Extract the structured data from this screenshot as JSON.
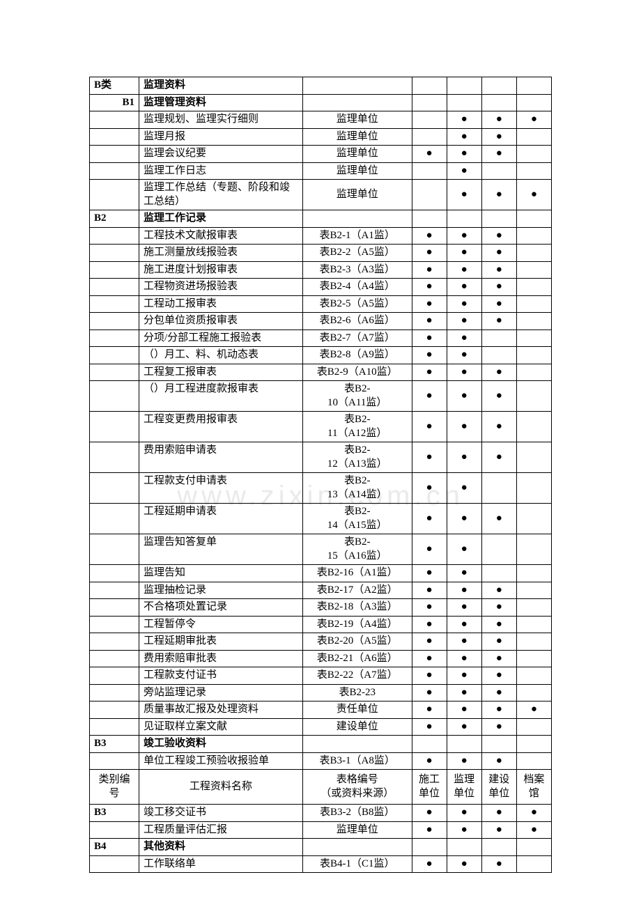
{
  "dot": "●",
  "watermark": "www.zixin.com.cn",
  "header_labels": {
    "code": "类别编号",
    "name": "工程资料名称",
    "form": "表格编号\n（或资料来源）",
    "c1": "施工单位",
    "c2": "监理单位",
    "c3": "建设单位",
    "c4": "档案馆"
  },
  "rows": [
    {
      "code": "B类",
      "name": "监理资料",
      "bold": true
    },
    {
      "code": "B1",
      "name": "监理管理资料",
      "bold": true,
      "codeRight": true
    },
    {
      "code": "",
      "name": "监理规划、监理实行细则",
      "form": "监理单位",
      "d": [
        0,
        1,
        1,
        1
      ]
    },
    {
      "code": "",
      "name": "监理月报",
      "form": "监理单位",
      "d": [
        0,
        1,
        1,
        0
      ]
    },
    {
      "code": "",
      "name": "监理会议纪要",
      "form": "监理单位",
      "d": [
        1,
        1,
        1,
        0
      ]
    },
    {
      "code": "",
      "name": "监理工作日志",
      "form": "监理单位",
      "d": [
        0,
        1,
        0,
        0
      ]
    },
    {
      "code": "",
      "name": "监理工作总结（专题、阶段和竣工总结）",
      "form": "监理单位",
      "d": [
        0,
        1,
        1,
        1
      ]
    },
    {
      "code": "B2",
      "name": "监理工作记录",
      "bold": true
    },
    {
      "code": "",
      "name": "工程技术文献报审表",
      "form": "表B2-1（A1监）",
      "d": [
        1,
        1,
        1,
        0
      ]
    },
    {
      "code": "",
      "name": "施工测量放线报验表",
      "form": "表B2-2（A5监）",
      "d": [
        1,
        1,
        1,
        0
      ]
    },
    {
      "code": "",
      "name": "施工进度计划报审表",
      "form": "表B2-3（A3监）",
      "d": [
        1,
        1,
        1,
        0
      ]
    },
    {
      "code": "",
      "name": "工程物资进场报验表",
      "form": "表B2-4（A4监）",
      "d": [
        1,
        1,
        1,
        0
      ]
    },
    {
      "code": "",
      "name": "工程动工报审表",
      "form": "表B2-5（A5监）",
      "d": [
        1,
        1,
        1,
        0
      ]
    },
    {
      "code": "",
      "name": "分包单位资质报审表",
      "form": "表B2-6（A6监）",
      "d": [
        1,
        1,
        1,
        0
      ]
    },
    {
      "code": "",
      "name": "分项/分部工程施工报验表",
      "form": "表B2-7（A7监）",
      "d": [
        1,
        1,
        0,
        0
      ]
    },
    {
      "code": "",
      "name": "（）月工、料、机动态表",
      "form": "表B2-8（A9监）",
      "d": [
        1,
        1,
        0,
        0
      ]
    },
    {
      "code": "",
      "name": "工程复工报审表",
      "form": "表B2-9（A10监）",
      "d": [
        1,
        1,
        1,
        0
      ]
    },
    {
      "code": "",
      "name": "（）月工程进度款报审表",
      "form": "表B2-10（A11监）",
      "d": [
        1,
        1,
        1,
        0
      ],
      "twoLineForm": true
    },
    {
      "code": "",
      "name": "工程变更费用报审表",
      "form": "表B2-11（A12监）",
      "d": [
        1,
        1,
        1,
        0
      ],
      "twoLineForm": true
    },
    {
      "code": "",
      "name": "费用索赔申请表",
      "form": "表B2-12（A13监）",
      "d": [
        1,
        1,
        1,
        0
      ],
      "twoLineForm": true
    },
    {
      "code": "",
      "name": "工程款支付申请表",
      "form": "表B2-13（A14监）",
      "d": [
        1,
        1,
        0,
        0
      ],
      "twoLineForm": true
    },
    {
      "code": "",
      "name": "工程延期申请表",
      "form": "表B2-14（A15监）",
      "d": [
        1,
        1,
        1,
        0
      ],
      "twoLineForm": true
    },
    {
      "code": "",
      "name": "监理告知答复单",
      "form": "表B2-15（A16监）",
      "d": [
        1,
        1,
        0,
        0
      ],
      "twoLineForm": true
    },
    {
      "code": "",
      "name": "监理告知",
      "form": "表B2-16（A1监）",
      "d": [
        1,
        1,
        0,
        0
      ]
    },
    {
      "code": "",
      "name": "监理抽检记录",
      "form": "表B2-17（A2监）",
      "d": [
        1,
        1,
        1,
        0
      ]
    },
    {
      "code": "",
      "name": "不合格项处置记录",
      "form": "表B2-18（A3监）",
      "d": [
        1,
        1,
        1,
        0
      ]
    },
    {
      "code": "",
      "name": "工程暂停令",
      "form": "表B2-19（A4监）",
      "d": [
        1,
        1,
        1,
        0
      ]
    },
    {
      "code": "",
      "name": "工程延期审批表",
      "form": "表B2-20（A5监）",
      "d": [
        1,
        1,
        1,
        0
      ]
    },
    {
      "code": "",
      "name": "费用索赔审批表",
      "form": "表B2-21（A6监）",
      "d": [
        1,
        1,
        1,
        0
      ]
    },
    {
      "code": "",
      "name": "工程款支付证书",
      "form": "表B2-22（A7监）",
      "d": [
        1,
        1,
        1,
        0
      ]
    },
    {
      "code": "",
      "name": "旁站监理记录",
      "form": "表B2-23",
      "d": [
        1,
        1,
        1,
        0
      ]
    },
    {
      "code": "",
      "name": "质量事故汇报及处理资料",
      "form": "责任单位",
      "d": [
        1,
        1,
        1,
        1
      ]
    },
    {
      "code": "",
      "name": "见证取样立案文献",
      "form": "建设单位",
      "d": [
        1,
        1,
        1,
        0
      ]
    },
    {
      "code": "B3",
      "name": "竣工验收资料",
      "bold": true
    },
    {
      "code": "",
      "name": "单位工程竣工预验收报验单",
      "form": "表B3-1（A8监）",
      "d": [
        1,
        1,
        1,
        0
      ]
    },
    {
      "header": true
    },
    {
      "code": "B3",
      "name": "竣工移交证书",
      "form": "表B3-2（B8监）",
      "d": [
        1,
        1,
        1,
        1
      ],
      "codeBold": true
    },
    {
      "code": "",
      "name": "工程质量评估汇报",
      "form": "监理单位",
      "d": [
        1,
        1,
        1,
        1
      ]
    },
    {
      "code": "B4",
      "name": "其他资料",
      "bold": true
    },
    {
      "code": "",
      "name": "工作联络单",
      "form": "表B4-1（C1监）",
      "d": [
        1,
        1,
        1,
        0
      ]
    }
  ]
}
